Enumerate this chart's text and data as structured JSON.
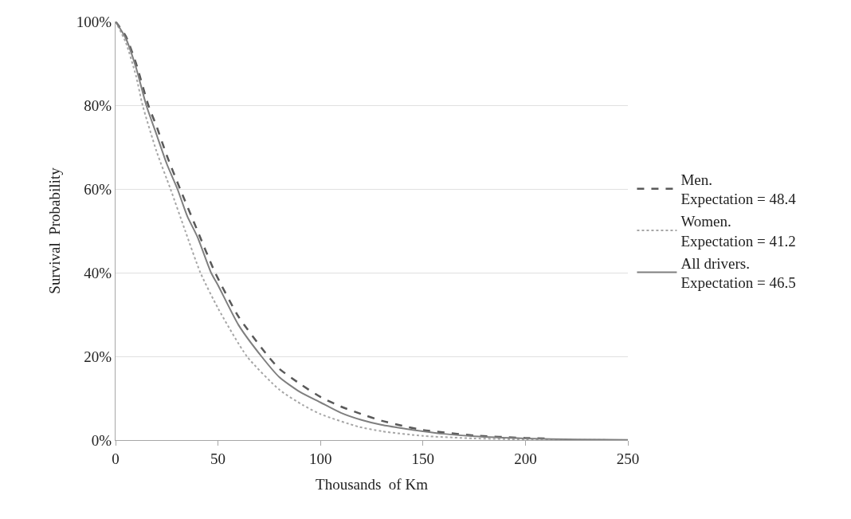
{
  "chart_data": {
    "type": "line",
    "xlabel": "Thousands  of Km",
    "ylabel": "Survival  Probability",
    "xlim": [
      0,
      250
    ],
    "xticks": [
      0,
      50,
      100,
      150,
      200,
      250
    ],
    "ylim": [
      0,
      100
    ],
    "yticks": [
      {
        "value": 0,
        "label": "0%"
      },
      {
        "value": 20,
        "label": "20%"
      },
      {
        "value": 40,
        "label": "40%"
      },
      {
        "value": 60,
        "label": "60%"
      },
      {
        "value": 80,
        "label": "80%"
      },
      {
        "value": 100,
        "label": "100%"
      }
    ],
    "grid": "y",
    "legend": "right",
    "marker": "none",
    "series": [
      {
        "name": "Men.\nExpectation = 48.4",
        "color": "#595959",
        "line_style": "dashed",
        "x": [
          0,
          5,
          10,
          16,
          20,
          25,
          31.5,
          40,
          48.6,
          60,
          74.5,
          80,
          91,
          100,
          110,
          120,
          130,
          140,
          150,
          175,
          200,
          210
        ],
        "values": [
          100,
          96.5,
          90,
          80,
          75,
          68,
          60,
          50,
          40,
          29.5,
          20,
          17,
          13.1,
          10.3,
          8,
          6.2,
          4.6,
          3.4,
          2.4,
          1.1,
          0.5,
          0.4
        ]
      },
      {
        "name": "Women.\nExpectation = 41.2",
        "color": "#a6a6a6",
        "line_style": "dotted",
        "x": [
          0,
          5,
          10,
          13.2,
          20,
          26.8,
          34,
          41.4,
          50,
          64.1,
          80,
          91.3,
          100,
          118.5,
          130,
          150,
          175,
          200,
          250
        ],
        "values": [
          100,
          95,
          87,
          80,
          69,
          60,
          50,
          40,
          31.5,
          20,
          12,
          8.4,
          6.2,
          3.2,
          2.1,
          1,
          0.4,
          0.15,
          0
        ]
      },
      {
        "name": "All drivers.\nExpectation = 46.5",
        "color": "#7f7f7f",
        "line_style": "solid",
        "x": [
          0,
          5,
          10,
          15,
          20,
          25,
          30.2,
          35,
          40,
          46.6,
          50,
          60,
          71.2,
          80,
          90,
          100,
          110,
          120,
          130,
          140,
          150,
          160,
          175,
          200,
          225,
          250
        ],
        "values": [
          100,
          96,
          89,
          80,
          73,
          66,
          60,
          53.5,
          48.5,
          40,
          37,
          27.5,
          20,
          15,
          11.5,
          9,
          6.5,
          4.8,
          3.6,
          2.8,
          2.1,
          1.5,
          0.9,
          0.4,
          0.15,
          0.05
        ]
      }
    ]
  }
}
